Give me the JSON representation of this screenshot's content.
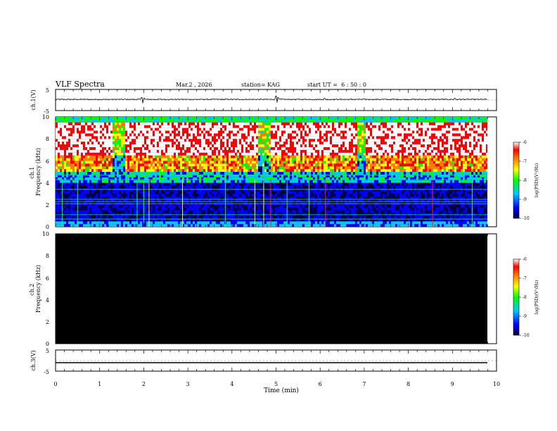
{
  "header": {
    "title": "VLF Spectra",
    "date": "Mar.2 , 2026",
    "station": "station= KAG",
    "start": "start UT =  6 : 50 : 0"
  },
  "chart_data": [
    {
      "type": "line",
      "panel": "ch1-waveform",
      "ylabel": "ch.1(V)",
      "ylim": [
        -5,
        5
      ],
      "ytick_labels": [
        "5",
        "-5"
      ],
      "xlim": [
        0,
        10
      ],
      "baseline_v": 0.3,
      "noise_amplitude_v": 0.2,
      "spikes": [
        {
          "t": 1.95,
          "v": 1.2
        },
        {
          "t": 1.98,
          "v": -1.5
        },
        {
          "t": 2.01,
          "v": 1.0
        },
        {
          "t": 5.0,
          "v": 1.9
        },
        {
          "t": 5.03,
          "v": -1.2
        },
        {
          "t": 5.05,
          "v": 1.1
        },
        {
          "t": 6.1,
          "v": 0.8
        },
        {
          "t": 9.05,
          "v": 0.8
        }
      ]
    },
    {
      "type": "heatmap",
      "panel": "ch1-spectrogram",
      "ylabel": "ch.1\nFrequency (kHz)",
      "ylabel_lines": [
        "ch.1",
        "Frequency (kHz)"
      ],
      "ylim": [
        0,
        10
      ],
      "ytick_labels": [
        "0",
        "2",
        "4",
        "6",
        "8",
        "10"
      ],
      "xlim": [
        0,
        10
      ],
      "colorbar_label": "log(PSD)(V²/Hz)",
      "colorbar_range": [
        -10,
        -6
      ],
      "colorbar_tick_labels": [
        "-10",
        "-9",
        "-8",
        "-7",
        "-6"
      ],
      "description_bands": [
        {
          "f_khz": [
            0,
            0.3
          ],
          "log_psd": -9.0
        },
        {
          "f_khz": [
            0.3,
            4.0
          ],
          "log_psd": -9.6
        },
        {
          "f_khz": [
            4.0,
            5.0
          ],
          "log_psd": -8.9
        },
        {
          "f_khz": [
            5.0,
            6.5
          ],
          "log_psd": -7.3
        },
        {
          "f_khz": [
            6.5,
            9.5
          ],
          "log_psd": -6.2
        },
        {
          "f_khz": [
            9.5,
            10.0
          ],
          "log_psd": -8.5
        }
      ],
      "quiet_intervals_min": [
        [
          1.25,
          1.55
        ],
        [
          4.55,
          4.85
        ],
        [
          6.8,
          7.0
        ]
      ],
      "green_lines_khz": [
        0.7,
        1.1,
        2.1,
        2.3,
        2.5,
        3.4,
        4.3,
        4.7
      ],
      "vertical_lines_min": [
        {
          "t": 0.15,
          "c": "green"
        },
        {
          "t": 0.5,
          "c": "green"
        },
        {
          "t": 1.85,
          "c": "green"
        },
        {
          "t": 2.0,
          "c": "green"
        },
        {
          "t": 2.12,
          "c": "yellow"
        },
        {
          "t": 2.88,
          "c": "yellow"
        },
        {
          "t": 3.85,
          "c": "green"
        },
        {
          "t": 4.52,
          "c": "yellow"
        },
        {
          "t": 4.72,
          "c": "yellow"
        },
        {
          "t": 4.88,
          "c": "red"
        },
        {
          "t": 5.25,
          "c": "green"
        },
        {
          "t": 5.75,
          "c": "green"
        },
        {
          "t": 6.12,
          "c": "red"
        },
        {
          "t": 8.55,
          "c": "red"
        },
        {
          "t": 9.45,
          "c": "green"
        }
      ]
    },
    {
      "type": "heatmap",
      "panel": "ch2-spectrogram",
      "ylabel": "ch.2\nFrequency (kHz)",
      "ylabel_lines": [
        "ch.2",
        "Frequency (kHz)"
      ],
      "ylim": [
        0,
        10
      ],
      "ytick_labels": [
        "0",
        "2",
        "4",
        "6",
        "8",
        "10"
      ],
      "xlim": [
        0,
        10
      ],
      "fill": "no data (black)",
      "colorbar_label": "log(PSD)(V²/Hz)",
      "colorbar_range": [
        -10,
        -6
      ],
      "colorbar_tick_labels": [
        "-10",
        "-9",
        "-8",
        "-7",
        "-6"
      ]
    },
    {
      "type": "line",
      "panel": "ch3-waveform",
      "ylabel": "ch.3(V)",
      "ylim": [
        -5,
        5
      ],
      "ytick_labels": [
        "5",
        "-5"
      ],
      "xlim": [
        0,
        10
      ],
      "baseline_v": -1.0
    }
  ],
  "xaxis": {
    "label": "Time (min)",
    "tick_labels": [
      "0",
      "1",
      "2",
      "3",
      "4",
      "5",
      "6",
      "7",
      "8",
      "9",
      "10"
    ]
  },
  "colors": {
    "colormap": [
      "#000040",
      "#0000ff",
      "#00c8ff",
      "#00ff00",
      "#ffff00",
      "#ff8000",
      "#ff0000",
      "#ffffff"
    ]
  }
}
